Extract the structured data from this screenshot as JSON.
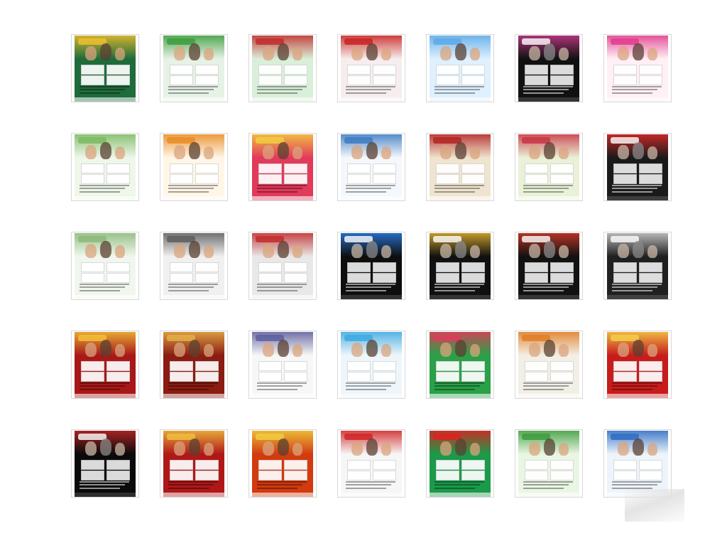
{
  "gallery": {
    "rows": 5,
    "cols": 7,
    "thumbnails": [
      {
        "theme": "colorful-collage",
        "bg": "#1f6b3a",
        "accent": "#f0c030",
        "dark": false
      },
      {
        "theme": "green-promo",
        "bg": "#e6f2e6",
        "accent": "#3a9b3a",
        "dark": false
      },
      {
        "theme": "green-collage",
        "bg": "#d9efd9",
        "accent": "#c02828",
        "dark": false
      },
      {
        "theme": "apple-portrait",
        "bg": "#f6eeee",
        "accent": "#c81e1e",
        "dark": false
      },
      {
        "theme": "light-blue",
        "bg": "#dff0ff",
        "accent": "#5aa8e6",
        "dark": false
      },
      {
        "theme": "dark-stage",
        "bg": "#111111",
        "accent": "#c83a8a",
        "dark": true
      },
      {
        "theme": "pink-title",
        "bg": "#fff0f6",
        "accent": "#e0388a",
        "dark": false
      },
      {
        "theme": "green-garden",
        "bg": "#eef7ea",
        "accent": "#7ab860",
        "dark": false
      },
      {
        "theme": "family-orange",
        "bg": "#fff6e8",
        "accent": "#e88a20",
        "dark": false
      },
      {
        "theme": "red-festival",
        "bg": "#e23a5a",
        "accent": "#f2d040",
        "dark": false
      },
      {
        "theme": "blue-clean",
        "bg": "#f4f8fc",
        "accent": "#3a78c0",
        "dark": false
      },
      {
        "theme": "tan-group",
        "bg": "#efe4cf",
        "accent": "#b02020",
        "dark": false
      },
      {
        "theme": "heart-wedding",
        "bg": "#e9f2d8",
        "accent": "#c83040",
        "dark": false
      },
      {
        "theme": "dark-red-logo",
        "bg": "#1a1a1a",
        "accent": "#e02a2a",
        "dark": true
      },
      {
        "theme": "pale-green",
        "bg": "#f1f7ee",
        "accent": "#8ab878",
        "dark": false
      },
      {
        "theme": "grey-cast",
        "bg": "#f0f0f0",
        "accent": "#5a5a5a",
        "dark": false
      },
      {
        "theme": "grey-banner",
        "bg": "#e8e8e8",
        "accent": "#c02828",
        "dark": false
      },
      {
        "theme": "black-3",
        "bg": "#0e0e0e",
        "accent": "#2a7ae0",
        "dark": true
      },
      {
        "theme": "black-gold",
        "bg": "#111111",
        "accent": "#e0b030",
        "dark": true
      },
      {
        "theme": "black-sparkle",
        "bg": "#121212",
        "accent": "#d03a2a",
        "dark": true
      },
      {
        "theme": "black-silver",
        "bg": "#202020",
        "accent": "#d0d0d0",
        "dark": true
      },
      {
        "theme": "red-gold",
        "bg": "#a81818",
        "accent": "#f2c23a",
        "dark": false
      },
      {
        "theme": "brown-red",
        "bg": "#8a1c12",
        "accent": "#e6b24a",
        "dark": false
      },
      {
        "theme": "white-portrait",
        "bg": "#f7f7f7",
        "accent": "#5a5a9a",
        "dark": false
      },
      {
        "theme": "sky-sale",
        "bg": "#eef6fb",
        "accent": "#3aa8e0",
        "dark": false
      },
      {
        "theme": "green-car",
        "bg": "#2aa048",
        "accent": "#e23a5a",
        "dark": false
      },
      {
        "theme": "collage-food",
        "bg": "#f2efe6",
        "accent": "#e07a20",
        "dark": false
      },
      {
        "theme": "red-circles",
        "bg": "#c81c1c",
        "accent": "#f4d24a",
        "dark": false
      },
      {
        "theme": "black-split",
        "bg": "#0a0a0a",
        "accent": "#c02828",
        "dark": true
      },
      {
        "theme": "red-diamond",
        "bg": "#b01818",
        "accent": "#f0c040",
        "dark": false
      },
      {
        "theme": "red-orange",
        "bg": "#d23a10",
        "accent": "#f0d040",
        "dark": false
      },
      {
        "theme": "white-red-title",
        "bg": "#f6f6f6",
        "accent": "#d02020",
        "dark": false
      },
      {
        "theme": "green-stripes",
        "bg": "#1c9a4a",
        "accent": "#e02020",
        "dark": false
      },
      {
        "theme": "green-sky",
        "bg": "#eaf6e4",
        "accent": "#3a9a3a",
        "dark": false
      },
      {
        "theme": "blue-cast",
        "bg": "#eef4fb",
        "accent": "#2a6ac0",
        "dark": false
      }
    ]
  }
}
